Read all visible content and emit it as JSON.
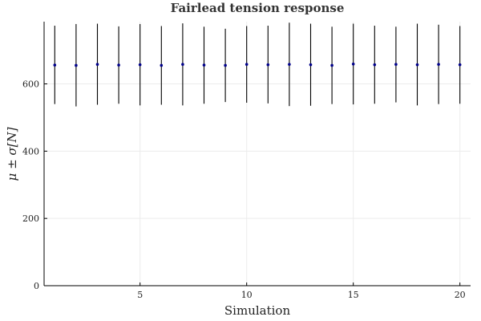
{
  "chart_data": {
    "type": "scatter",
    "title": "Fairlead tension response",
    "xlabel": "Simulation",
    "ylabel": "μ ± σ[N]",
    "xlim": [
      0.5,
      20.5
    ],
    "ylim": [
      0,
      785
    ],
    "xticks": [
      5,
      10,
      15,
      20
    ],
    "yticks": [
      0,
      200,
      400,
      600
    ],
    "grid": true,
    "legend": "none",
    "colors": {
      "point": "#00008b",
      "errorbar": "#000000"
    },
    "series": [
      {
        "x": [
          1,
          2,
          3,
          4,
          5,
          6,
          7,
          8,
          9,
          10,
          11,
          12,
          13,
          14,
          15,
          16,
          17,
          18,
          19,
          20
        ],
        "mean": [
          656,
          655,
          658,
          656,
          657,
          655,
          658,
          656,
          655,
          658,
          657,
          658,
          657,
          655,
          659,
          657,
          658,
          657,
          658,
          657
        ],
        "lower": [
          540,
          533,
          538,
          541,
          536,
          538,
          536,
          541,
          546,
          544,
          542,
          534,
          535,
          540,
          539,
          541,
          545,
          536,
          540,
          541
        ],
        "upper": [
          773,
          778,
          779,
          771,
          778,
          772,
          780,
          770,
          764,
          772,
          773,
          782,
          779,
          770,
          779,
          773,
          770,
          779,
          776,
          772
        ]
      }
    ]
  }
}
